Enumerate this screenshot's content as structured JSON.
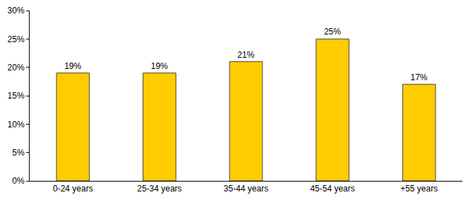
{
  "chart_data": {
    "type": "bar",
    "categories": [
      "0-24 years",
      "25-34 years",
      "35-44 years",
      "45-54 years",
      "+55 years"
    ],
    "values": [
      19,
      19,
      21,
      25,
      17
    ],
    "value_labels": [
      "19%",
      "19%",
      "21%",
      "25%",
      "17%"
    ],
    "data_labels": true,
    "color": "#ffcc00",
    "ylim": [
      0,
      30
    ],
    "yticks": [
      {
        "value": 0,
        "label": "0%"
      },
      {
        "value": 5,
        "label": "5%"
      },
      {
        "value": 10,
        "label": "10%"
      },
      {
        "value": 15,
        "label": "15%"
      },
      {
        "value": 20,
        "label": "20%"
      },
      {
        "value": 25,
        "label": "25%"
      },
      {
        "value": 30,
        "label": "30%"
      }
    ],
    "grid": false
  }
}
